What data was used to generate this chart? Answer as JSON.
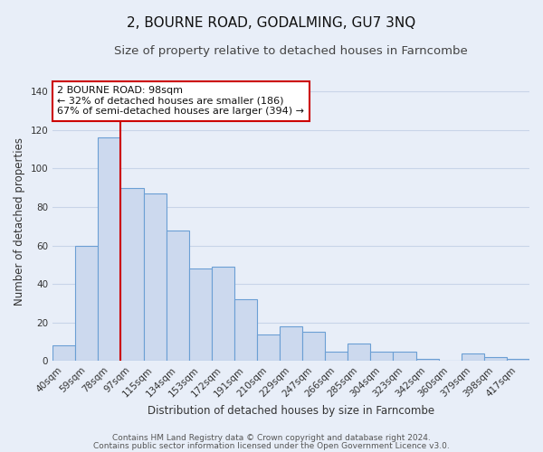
{
  "title": "2, BOURNE ROAD, GODALMING, GU7 3NQ",
  "subtitle": "Size of property relative to detached houses in Farncombe",
  "xlabel": "Distribution of detached houses by size in Farncombe",
  "ylabel": "Number of detached properties",
  "bar_labels": [
    "40sqm",
    "59sqm",
    "78sqm",
    "97sqm",
    "115sqm",
    "134sqm",
    "153sqm",
    "172sqm",
    "191sqm",
    "210sqm",
    "229sqm",
    "247sqm",
    "266sqm",
    "285sqm",
    "304sqm",
    "323sqm",
    "342sqm",
    "360sqm",
    "379sqm",
    "398sqm",
    "417sqm"
  ],
  "bar_values": [
    8,
    60,
    116,
    90,
    87,
    68,
    48,
    49,
    32,
    14,
    18,
    15,
    5,
    9,
    5,
    5,
    1,
    0,
    4,
    2,
    1
  ],
  "bar_color": "#ccd9ee",
  "bar_edge_color": "#6b9fd4",
  "vline_position": 2.5,
  "vline_color": "#cc0000",
  "ylim": [
    0,
    145
  ],
  "yticks": [
    0,
    20,
    40,
    60,
    80,
    100,
    120,
    140
  ],
  "annotation_title": "2 BOURNE ROAD: 98sqm",
  "annotation_line1": "← 32% of detached houses are smaller (186)",
  "annotation_line2": "67% of semi-detached houses are larger (394) →",
  "annotation_box_color": "#ffffff",
  "annotation_box_edge": "#cc0000",
  "footer1": "Contains HM Land Registry data © Crown copyright and database right 2024.",
  "footer2": "Contains public sector information licensed under the Open Government Licence v3.0.",
  "background_color": "#e8eef8",
  "plot_bg_color": "#e8eef8",
  "grid_color": "#c8d4e8",
  "title_fontsize": 11,
  "subtitle_fontsize": 9.5,
  "axis_label_fontsize": 8.5,
  "tick_fontsize": 7.5,
  "annotation_fontsize": 8,
  "footer_fontsize": 6.5
}
